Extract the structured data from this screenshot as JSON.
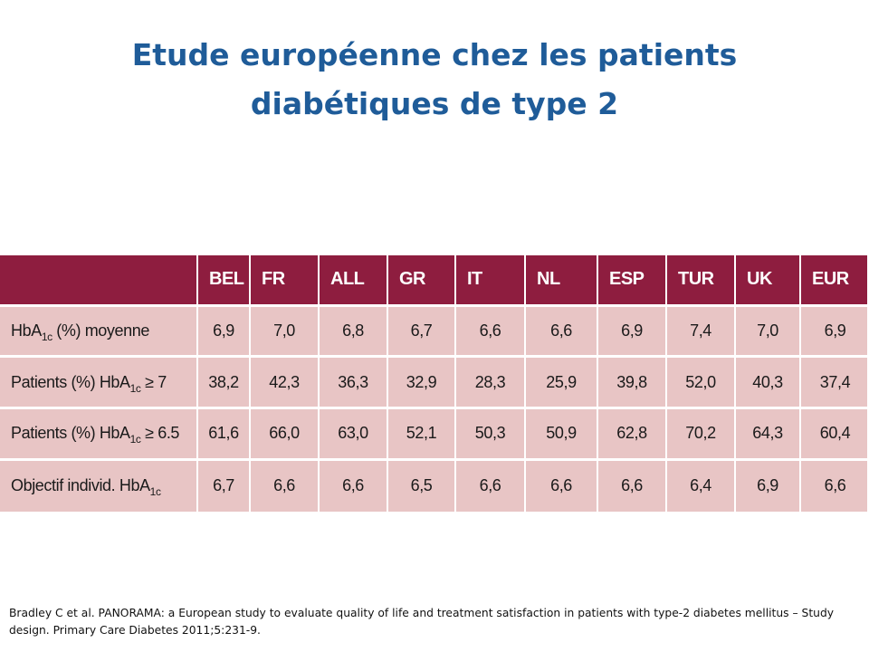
{
  "slide": {
    "title": "Etude  européenne chez les patients\ndiabétiques de type 2"
  },
  "table": {
    "headers": [
      "BEL",
      "FR",
      "ALL",
      "GR",
      "IT",
      "NL",
      "ESP",
      "TUR",
      "UK",
      "EUR"
    ],
    "rows": [
      {
        "label_pre": "HbA",
        "label_sub": "1c",
        "label_post": " (%) moyenne",
        "values": [
          "6,9",
          "7,0",
          "6,8",
          "6,7",
          "6,6",
          "6,6",
          "6,9",
          "7,4",
          "7,0",
          "6,9"
        ]
      },
      {
        "label_pre": "Patients (%) HbA",
        "label_sub": "1c",
        "label_post": " ≥ 7",
        "values": [
          "38,2",
          "42,3",
          "36,3",
          "32,9",
          "28,3",
          "25,9",
          "39,8",
          "52,0",
          "40,3",
          "37,4"
        ]
      },
      {
        "label_pre": "Patients (%) HbA",
        "label_sub": "1c",
        "label_post": " ≥ 6.5",
        "values": [
          "61,6",
          "66,0",
          "63,0",
          "52,1",
          "50,3",
          "50,9",
          "62,8",
          "70,2",
          "64,3",
          "60,4"
        ]
      },
      {
        "label_pre": "Objectif individ. HbA",
        "label_sub": "1c",
        "label_post": "",
        "values": [
          "6,7",
          "6,6",
          "6,6",
          "6,5",
          "6,6",
          "6,6",
          "6,6",
          "6,4",
          "6,9",
          "6,6"
        ]
      }
    ]
  },
  "footnote": "Bradley C et al. PANORAMA: a European study to evaluate quality of life and treatment satisfaction in patients with type-2 diabetes mellitus – Study design. Primary Care Diabetes 2011;5:231-9.",
  "colors": {
    "title": "#1f5c99",
    "header_bg": "#8e1d3f",
    "cell_bg": "#e8c5c5"
  }
}
